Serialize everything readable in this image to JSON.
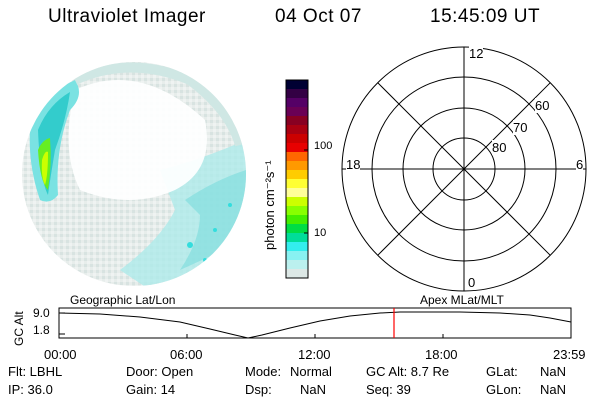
{
  "header": {
    "title": "Ultraviolet Imager",
    "date": "04 Oct 07",
    "time": "15:45:09 UT"
  },
  "colorbar": {
    "label": "photon cm⁻²s⁻¹",
    "ticks": [
      "100",
      "10"
    ],
    "colors": [
      "#000033",
      "#330044",
      "#550066",
      "#6a0055",
      "#880022",
      "#aa0011",
      "#cc0000",
      "#e80000",
      "#ff6600",
      "#ff9900",
      "#ffcc00",
      "#ffff33",
      "#ffff99",
      "#ccff00",
      "#88ff00",
      "#44ee00",
      "#00dd44",
      "#00dd99",
      "#33eeee",
      "#88f2f2",
      "#bbf0ee",
      "#dde8e6"
    ]
  },
  "polar": {
    "labels": [
      "12",
      "6",
      "0",
      "18",
      "60",
      "70",
      "80"
    ]
  },
  "timeline": {
    "left_label": "Geographic Lat/Lon",
    "right_label": "Apex MLat/MLT",
    "ylabel": "GC Alt",
    "yticks": [
      "9.0",
      "1.8"
    ],
    "xticks": [
      "00:00",
      "06:00",
      "12:00",
      "18:00",
      "23:59"
    ]
  },
  "info": {
    "flt": "Flt: LBHL",
    "ip": "IP: 36.0",
    "door": "Door: Open",
    "gain": "Gain: 14",
    "mode_label": "Mode:",
    "mode_value": "Normal",
    "dsp_label": "Dsp:",
    "dsp_value": "NaN",
    "gcalt": "GC Alt: 8.7 Re",
    "seq": "Seq: 39",
    "glat_label": "GLat:",
    "glat_value": "NaN",
    "glon_label": "GLon:",
    "glon_value": "NaN"
  }
}
